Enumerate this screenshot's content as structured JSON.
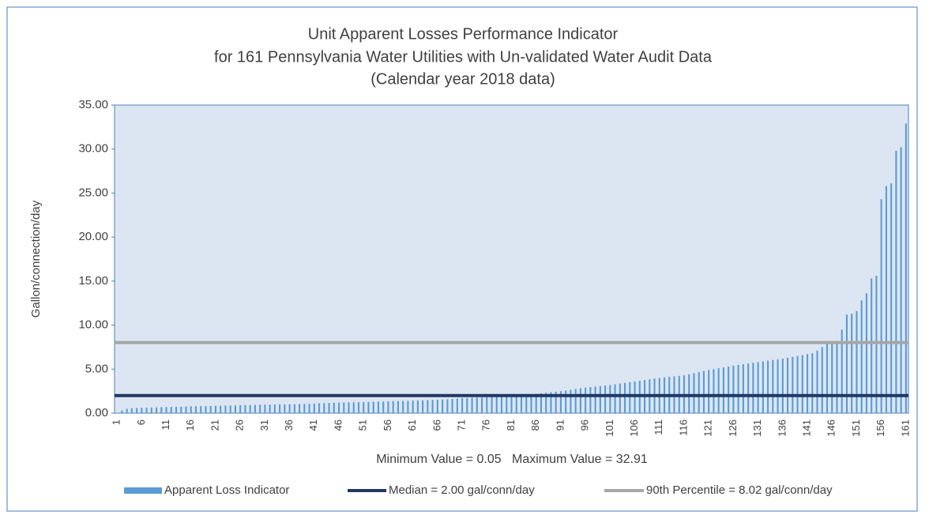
{
  "chart_data": {
    "type": "bar",
    "title": [
      "Unit Apparent Losses Performance Indicator",
      "for 161 Pennsylvania Water Utilities with Un-validated Water Audit Data",
      "(Calendar year 2018 data)"
    ],
    "y_label": "Gallon/connection/day",
    "annotation": "Minimum Value = 0.05   Maximum Value = 32.91",
    "categories": [
      "1",
      null,
      null,
      null,
      null,
      "6",
      null,
      null,
      null,
      null,
      "11",
      null,
      null,
      null,
      null,
      "16",
      null,
      null,
      null,
      null,
      "21",
      null,
      null,
      null,
      null,
      "26",
      null,
      null,
      null,
      null,
      "31",
      null,
      null,
      null,
      null,
      "36",
      null,
      null,
      null,
      null,
      "41",
      null,
      null,
      null,
      null,
      "46",
      null,
      null,
      null,
      null,
      "51",
      null,
      null,
      null,
      null,
      "56",
      null,
      null,
      null,
      null,
      "61",
      null,
      null,
      null,
      null,
      "66",
      null,
      null,
      null,
      null,
      "71",
      null,
      null,
      null,
      null,
      "76",
      null,
      null,
      null,
      null,
      "81",
      null,
      null,
      null,
      null,
      "86",
      null,
      null,
      null,
      null,
      "91",
      null,
      null,
      null,
      null,
      "96",
      null,
      null,
      null,
      null,
      "101",
      null,
      null,
      null,
      null,
      "106",
      null,
      null,
      null,
      null,
      "111",
      null,
      null,
      null,
      null,
      "116",
      null,
      null,
      null,
      null,
      "121",
      null,
      null,
      null,
      null,
      "126",
      null,
      null,
      null,
      null,
      "131",
      null,
      null,
      null,
      null,
      "136",
      null,
      null,
      null,
      null,
      "141",
      null,
      null,
      null,
      null,
      "146",
      null,
      null,
      null,
      null,
      "151",
      null,
      null,
      null,
      null,
      "156",
      null,
      null,
      null,
      null,
      "161"
    ],
    "series": [
      {
        "name": "Apparent Loss Indicator",
        "color": "#5b9bd5",
        "values": [
          0.05,
          0.3,
          0.5,
          0.55,
          0.58,
          0.6,
          0.62,
          0.64,
          0.66,
          0.68,
          0.7,
          0.71,
          0.72,
          0.74,
          0.76,
          0.78,
          0.79,
          0.8,
          0.81,
          0.82,
          0.83,
          0.85,
          0.86,
          0.87,
          0.88,
          0.9,
          0.91,
          0.92,
          0.94,
          0.96,
          0.97,
          0.98,
          0.99,
          1.0,
          1.0,
          1.01,
          1.02,
          1.04,
          1.06,
          1.08,
          1.1,
          1.12,
          1.14,
          1.16,
          1.18,
          1.2,
          1.21,
          1.22,
          1.23,
          1.24,
          1.25,
          1.27,
          1.29,
          1.31,
          1.33,
          1.35,
          1.37,
          1.38,
          1.39,
          1.4,
          1.42,
          1.44,
          1.46,
          1.48,
          1.5,
          1.52,
          1.55,
          1.58,
          1.62,
          1.66,
          1.7,
          1.72,
          1.74,
          1.76,
          1.78,
          1.8,
          1.84,
          1.88,
          1.92,
          1.96,
          2.0,
          2.04,
          2.08,
          2.12,
          2.16,
          2.2,
          2.26,
          2.32,
          2.38,
          2.44,
          2.5,
          2.58,
          2.66,
          2.74,
          2.82,
          2.9,
          2.96,
          3.02,
          3.08,
          3.14,
          3.2,
          3.28,
          3.36,
          3.44,
          3.52,
          3.6,
          3.68,
          3.76,
          3.84,
          3.92,
          4.0,
          4.06,
          4.12,
          4.18,
          4.24,
          4.3,
          4.42,
          4.54,
          4.66,
          4.78,
          4.9,
          5.0,
          5.1,
          5.2,
          5.3,
          5.4,
          5.48,
          5.56,
          5.64,
          5.72,
          5.8,
          5.88,
          5.96,
          6.04,
          6.12,
          6.2,
          6.3,
          6.4,
          6.5,
          6.6,
          6.7,
          6.8,
          7.1,
          7.5,
          8.0,
          8.02,
          8.2,
          9.5,
          11.2,
          11.3,
          11.6,
          12.8,
          13.6,
          15.3,
          15.6,
          24.3,
          25.8,
          26.1,
          29.8,
          30.2,
          32.91
        ]
      }
    ],
    "reference_lines": [
      {
        "name": "Median = 2.00 gal/conn/day",
        "value": 2.0,
        "color": "#1f3864"
      },
      {
        "name": "90th Percentile = 8.02 gal/conn/day",
        "value": 8.02,
        "color": "#a6a6a6"
      }
    ],
    "ylim": [
      0,
      35
    ],
    "yticks": [
      {
        "value": 0,
        "label": "0.00"
      },
      {
        "value": 5,
        "label": "5.00"
      },
      {
        "value": 10,
        "label": "10.00"
      },
      {
        "value": 15,
        "label": "15.00"
      },
      {
        "value": 20,
        "label": "20.00"
      },
      {
        "value": 25,
        "label": "25.00"
      },
      {
        "value": 30,
        "label": "30.00"
      },
      {
        "value": 35,
        "label": "35.00"
      }
    ]
  }
}
